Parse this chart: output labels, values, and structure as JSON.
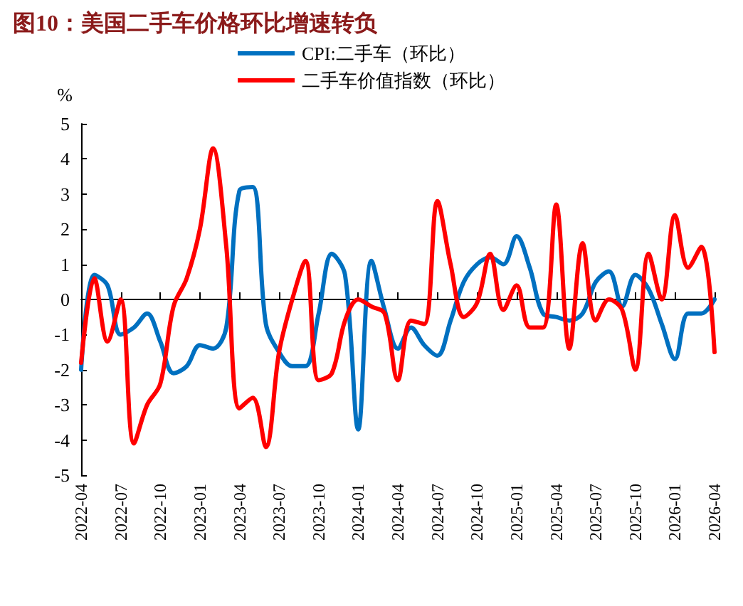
{
  "chart_data": {
    "type": "line",
    "title": "图10：美国二手车价格环比增速转负",
    "ylabel": "%",
    "categories": [
      "2022-04",
      null,
      null,
      "2022-07",
      null,
      null,
      "2022-10",
      null,
      null,
      "2023-01",
      null,
      null,
      "2023-04",
      null,
      null,
      "2023-07",
      null,
      null,
      "2023-10",
      null,
      null,
      "2024-01",
      null,
      null,
      "2024-04",
      null,
      null,
      "2024-07",
      null,
      null,
      "2024-10",
      null,
      null,
      "2025-01",
      null,
      null,
      "2025-04",
      null,
      null,
      "2025-07",
      null,
      null,
      "2025-10",
      null,
      null,
      "2026-01",
      null,
      null,
      "2026-04"
    ],
    "series": [
      {
        "name": "CPI:二手车（环比）",
        "color": "#0070c0",
        "values": [
          -2.0,
          0.7,
          0.4,
          -1.0,
          -0.8,
          -0.4,
          -1.2,
          -2.1,
          -1.9,
          -1.3,
          -1.4,
          -0.8,
          3.1,
          3.2,
          -0.7,
          -1.5,
          -1.9,
          -1.9,
          -0.4,
          1.3,
          0.7,
          -3.7,
          1.1,
          -0.3,
          -1.4,
          -0.8,
          -1.3,
          -1.6,
          -0.6,
          0.5,
          1.0,
          1.2,
          1.0,
          1.8,
          0.9,
          -0.4,
          -0.5,
          -0.6,
          -0.4,
          0.5,
          0.8,
          -0.2,
          0.7,
          0.3,
          -0.7,
          -1.7,
          -0.4,
          -0.4,
          0.0
        ]
      },
      {
        "name": "二手车价值指数（环比）",
        "color": "#ff0000",
        "values": [
          -1.8,
          0.6,
          -1.2,
          0.0,
          -4.1,
          -3.0,
          -2.4,
          -0.2,
          0.6,
          2.0,
          4.3,
          1.5,
          -3.1,
          -2.8,
          -4.2,
          -1.5,
          0.0,
          1.1,
          -2.3,
          -2.1,
          -0.6,
          0.0,
          -0.2,
          -0.4,
          -2.3,
          -0.6,
          -0.7,
          2.8,
          1.0,
          -0.5,
          -0.1,
          1.3,
          -0.3,
          0.4,
          -0.8,
          -0.8,
          2.7,
          -1.4,
          1.6,
          -0.6,
          0.0,
          -0.3,
          -2.0,
          1.3,
          0.0,
          2.4,
          0.9,
          1.5,
          -1.5
        ]
      }
    ],
    "ylim": [
      -5,
      5
    ],
    "yticks": [
      -5,
      -4,
      -3,
      -2,
      -1,
      0,
      1,
      2,
      3,
      4,
      5
    ],
    "legend": "top",
    "marker": "none",
    "line_style": "solid"
  }
}
